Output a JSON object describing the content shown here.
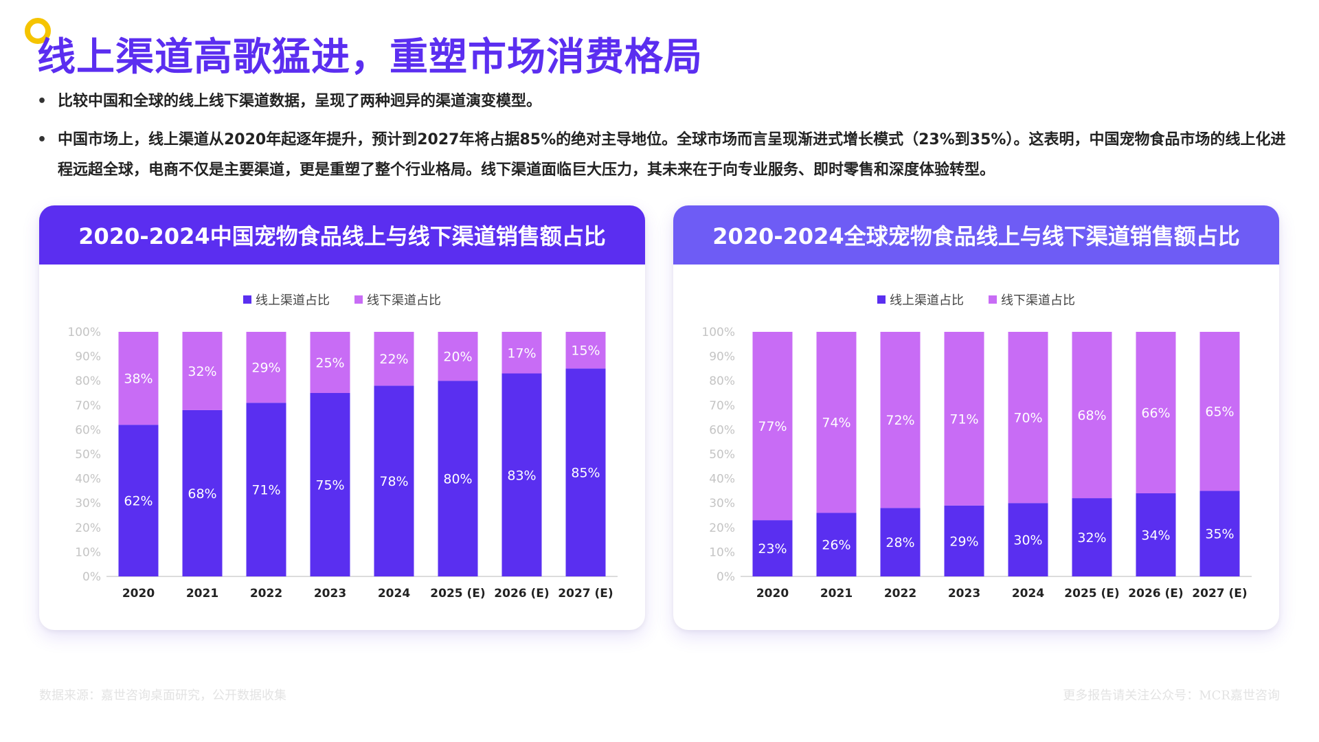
{
  "title": "线上渠道高歌猛进，重塑市场消费格局",
  "bullets": [
    "比较中国和全球的线上线下渠道数据，呈现了两种迥异的渠道演变模型。",
    "中国市场上，线上渠道从2020年起逐年提升，预计到2027年将占据85%的绝对主导地位。全球市场而言呈现渐进式增长模式（23%到35%）。这表明，中国宠物食品市场的线上化进程远超全球，电商不仅是主要渠道，更是重塑了整个行业格局。线下渠道面临巨大压力，其未来在于向专业服务、即时零售和深度体验转型。"
  ],
  "footer": {
    "source": "数据来源：嘉世咨询桌面研究，公开数据收集",
    "more": "更多报告请关注公众号：MCR嘉世咨询"
  },
  "colors": {
    "online": "#5a2ff0",
    "offline": "#c86cf5"
  },
  "chart_data": [
    {
      "type": "bar",
      "stacked": true,
      "title": "2020-2024中国宠物食品线上与线下渠道销售额占比",
      "categories": [
        "2020",
        "2021",
        "2022",
        "2023",
        "2024",
        "2025 (E)",
        "2026 (E)",
        "2027 (E)"
      ],
      "series": [
        {
          "name": "线上渠道占比",
          "values": [
            62,
            68,
            71,
            75,
            78,
            80,
            83,
            85
          ]
        },
        {
          "name": "线下渠道占比",
          "values": [
            38,
            32,
            29,
            25,
            22,
            20,
            17,
            15
          ]
        }
      ],
      "value_suffix": "%",
      "ylim": [
        0,
        100
      ],
      "yticks": [
        "0%",
        "10%",
        "20%",
        "30%",
        "40%",
        "50%",
        "60%",
        "70%",
        "80%",
        "90%",
        "100%"
      ],
      "legend": "top-center",
      "grid": false
    },
    {
      "type": "bar",
      "stacked": true,
      "title": "2020-2024全球宠物食品线上与线下渠道销售额占比",
      "categories": [
        "2020",
        "2021",
        "2022",
        "2023",
        "2024",
        "2025 (E)",
        "2026 (E)",
        "2027 (E)"
      ],
      "series": [
        {
          "name": "线上渠道占比",
          "values": [
            23,
            26,
            28,
            29,
            30,
            32,
            34,
            35
          ]
        },
        {
          "name": "线下渠道占比",
          "values": [
            77,
            74,
            72,
            71,
            70,
            68,
            66,
            65
          ]
        }
      ],
      "value_suffix": "%",
      "ylim": [
        0,
        100
      ],
      "yticks": [
        "0%",
        "10%",
        "20%",
        "30%",
        "40%",
        "50%",
        "60%",
        "70%",
        "80%",
        "90%",
        "100%"
      ],
      "legend": "top-center",
      "grid": false
    }
  ]
}
